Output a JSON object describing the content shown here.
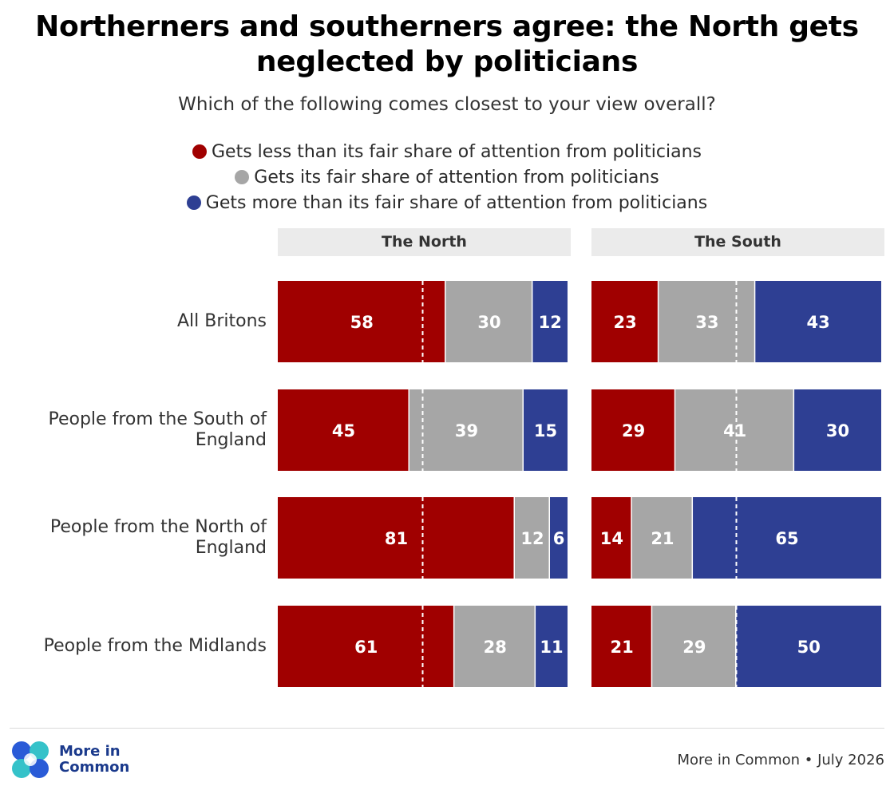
{
  "title": "Northerners and southerners agree: the North gets neglected by politicians",
  "subtitle": "Which of the following comes closest to your view overall?",
  "colors": {
    "less": "#a00000",
    "fair": "#a6a6a6",
    "more": "#2e3f93",
    "header_bg": "#ebebeb"
  },
  "chart_data": {
    "type": "bar",
    "stacked": true,
    "orientation": "horizontal",
    "legend": [
      {
        "key": "less",
        "label": "Gets less than its fair share of attention from politicians"
      },
      {
        "key": "fair",
        "label": "Gets its fair share of attention from politicians"
      },
      {
        "key": "more",
        "label": "Gets more than its fair share of attention from politicians"
      }
    ],
    "categories": [
      "All Britons",
      "People from the South of England",
      "People from the North of England",
      "People from the Midlands"
    ],
    "panels": [
      {
        "name": "The North",
        "values": [
          {
            "less": 58,
            "fair": 30,
            "more": 12
          },
          {
            "less": 45,
            "fair": 39,
            "more": 15
          },
          {
            "less": 81,
            "fair": 12,
            "more": 6
          },
          {
            "less": 61,
            "fair": 28,
            "more": 11
          }
        ]
      },
      {
        "name": "The South",
        "values": [
          {
            "less": 23,
            "fair": 33,
            "more": 43
          },
          {
            "less": 29,
            "fair": 41,
            "more": 30
          },
          {
            "less": 14,
            "fair": 21,
            "more": 65
          },
          {
            "less": 21,
            "fair": 29,
            "more": 50
          }
        ]
      }
    ],
    "reference_line": 50,
    "xlim": [
      0,
      100
    ]
  },
  "footer": {
    "logo_text": "More in\nCommon",
    "source": "More in Common • July 2026"
  }
}
